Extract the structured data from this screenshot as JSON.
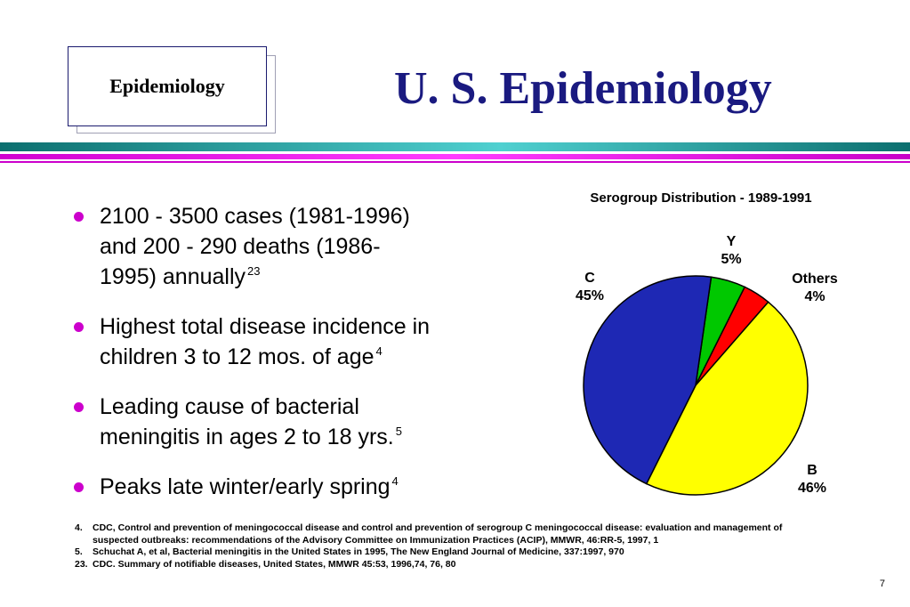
{
  "badge": {
    "label": "Epidemiology"
  },
  "slide": {
    "title": "U. S. Epidemiology",
    "page_number": "7"
  },
  "bullets": [
    {
      "lines": [
        "2100 - 3500 cases (1981-1996)",
        "and 200 - 290 deaths (1986-",
        "1995) annually"
      ],
      "ref": "23"
    },
    {
      "lines": [
        "Highest total disease incidence in",
        "children 3 to 12 mos. of age"
      ],
      "ref": "4"
    },
    {
      "lines": [
        "Leading cause of bacterial",
        "meningitis in ages 2 to 18 yrs."
      ],
      "ref": "5"
    },
    {
      "lines": [
        "Peaks late winter/early spring"
      ],
      "ref": "4"
    }
  ],
  "footnotes": [
    {
      "num": "4.",
      "lines": [
        "CDC, Control and prevention of meningococcal disease and control and prevention of serogroup C meningococcal disease: evaluation and management of",
        "suspected outbreaks: recommendations of the Advisory Committee on Immunization Practices (ACIP),  MMWR, 46:RR-5, 1997, 1"
      ]
    },
    {
      "num": "5.",
      "lines": [
        "Schuchat A,  et al, Bacterial meningitis in the United States in 1995, The New England Journal of Medicine, 337:1997, 970"
      ]
    },
    {
      "num": "23.",
      "lines": [
        "CDC. Summary of notifiable diseases, United States,  MMWR 45:53, 1996,74, 76, 80"
      ]
    }
  ],
  "colors": {
    "title": "#1a1a80",
    "bullet": "#cc00cc",
    "teal_bar": "#0c6f6f",
    "magenta_bar": "#cc00cc"
  },
  "chart_data": {
    "type": "pie",
    "title": "Serogroup Distribution - 1989-1991",
    "slices": [
      {
        "name": "Y",
        "value": 5,
        "label": "5%",
        "color": "#00c800"
      },
      {
        "name": "Others",
        "value": 4,
        "label": "4%",
        "color": "#ff0000"
      },
      {
        "name": "B",
        "value": 46,
        "label": "46%",
        "color": "#ffff00"
      },
      {
        "name": "C",
        "value": 45,
        "label": "45%",
        "color": "#1e28b4"
      }
    ]
  }
}
